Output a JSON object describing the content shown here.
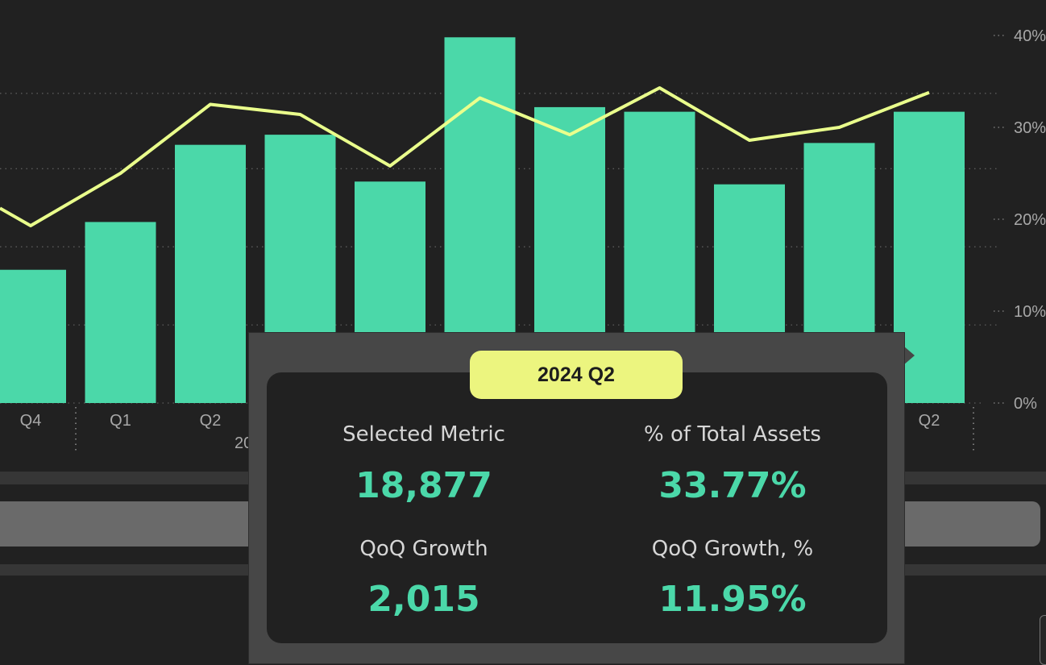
{
  "colors": {
    "bar": "#4bd8a9",
    "line": "#eaff8c",
    "background": "#212121",
    "tooltip_title_bg": "#ecf57f",
    "value_text": "#4bd8a9"
  },
  "chart_data": {
    "type": "bar",
    "categories": [
      "Q4",
      "Q1",
      "Q2",
      "",
      "",
      "",
      "",
      "",
      "",
      "",
      "Q2"
    ],
    "year_fragment": "20",
    "values": [
      14.5,
      19.7,
      28.1,
      29.2,
      24.1,
      39.8,
      32.2,
      31.7,
      23.8,
      28.3,
      31.7
    ],
    "line_values": [
      19.3,
      25.0,
      32.5,
      31.4,
      25.8,
      33.2,
      29.2,
      34.3,
      28.6,
      30.0,
      33.8
    ],
    "yticks": [
      "0%",
      "10%",
      "20%",
      "30%",
      "40%"
    ],
    "ylim": [
      0,
      40
    ],
    "grid": true
  },
  "tooltip": {
    "title": "2024 Q2",
    "metrics": [
      {
        "label": "Selected Metric",
        "value": "18,877"
      },
      {
        "label": "% of Total Assets",
        "value": "33.77%"
      },
      {
        "label": "QoQ Growth",
        "value": "2,015"
      },
      {
        "label": "QoQ Growth, %",
        "value": "11.95%"
      }
    ]
  }
}
